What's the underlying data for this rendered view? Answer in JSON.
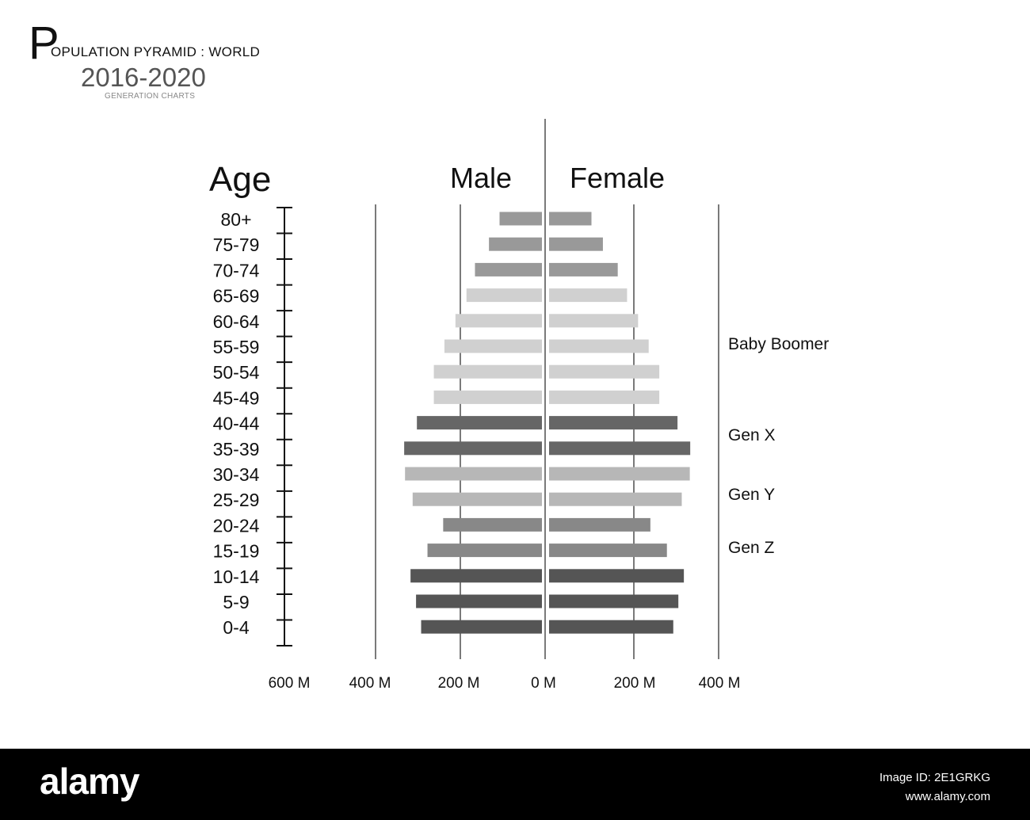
{
  "header": {
    "title_initial": "P",
    "title_rest": "OPULATION PYRAMID : WORLD",
    "years": "2016-2020",
    "subtitle": "GENERATION CHARTS"
  },
  "chart_data": {
    "type": "bar",
    "orientation": "horizontal-population-pyramid",
    "age_axis_title": "Age",
    "categories": [
      "80+",
      "75-79",
      "70-74",
      "65-69",
      "60-64",
      "55-59",
      "50-54",
      "45-49",
      "40-44",
      "35-39",
      "30-34",
      "25-29",
      "20-24",
      "15-19",
      "10-14",
      "5-9",
      "0-4"
    ],
    "series": [
      {
        "name": "Male",
        "values": [
          100,
          125,
          158,
          178,
          204,
          230,
          255,
          255,
          295,
          325,
          323,
          305,
          233,
          270,
          310,
          297,
          285
        ]
      },
      {
        "name": "Female",
        "values": [
          100,
          127,
          162,
          184,
          210,
          235,
          260,
          260,
          303,
          333,
          332,
          313,
          239,
          278,
          318,
          305,
          293
        ]
      }
    ],
    "bar_colors": [
      "#999999",
      "#999999",
      "#999999",
      "#d0d0d0",
      "#d0d0d0",
      "#d0d0d0",
      "#d0d0d0",
      "#d0d0d0",
      "#666666",
      "#666666",
      "#b7b7b7",
      "#b7b7b7",
      "#888888",
      "#888888",
      "#555555",
      "#555555",
      "#555555"
    ],
    "male_tick_labels": [
      "600 M",
      "400 M",
      "200 M",
      "0 M"
    ],
    "female_tick_labels": [
      "200 M",
      "400 M"
    ],
    "xlim_male": [
      0,
      600
    ],
    "xlim_female": [
      0,
      400
    ],
    "unit": "M",
    "grid": true,
    "generation_labels": [
      {
        "label": "Baby Boomer",
        "age_group": "55-59"
      },
      {
        "label": "Gen X",
        "age_group": "40-44"
      },
      {
        "label": "Gen Y",
        "age_group": "30-34"
      },
      {
        "label": "Gen Z",
        "age_group": "20-24"
      }
    ]
  },
  "footer": {
    "logo": "alamy",
    "image_id": "Image ID: 2E1GRKG",
    "url": "www.alamy.com"
  }
}
